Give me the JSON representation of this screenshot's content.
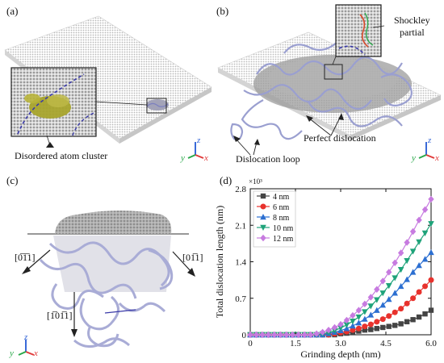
{
  "panels": {
    "a": {
      "letter": "(a)",
      "annotation": "Disordered atom cluster"
    },
    "b": {
      "letter": "(b)",
      "annotation_partial_line1": "Shockley",
      "annotation_partial_line2": "partial",
      "annotation_perfect": "Perfect dislocation",
      "annotation_loop": "Dislocation loop"
    },
    "c": {
      "letter": "(c)",
      "dir_left": "[0̅1̅1]",
      "dir_right": "[01̅1]",
      "dir_down": "[1̅01̅1]"
    },
    "d": {
      "letter": "(d)"
    },
    "axes_triad": {
      "x": "x",
      "y": "y",
      "z": "z"
    },
    "colors": {
      "atoms": "#b9b9b9",
      "cluster": "#b8b43a",
      "dislocation": "#9a9fd0",
      "burgers": "#3a3aa8",
      "triad_x": "#e03a3a",
      "triad_y": "#2aa84a",
      "triad_z": "#3a6ad8"
    }
  },
  "chart_data": {
    "type": "line",
    "title": "",
    "xlabel": "Grinding depth (nm)",
    "ylabel": "Total dislocation length (nm)",
    "y_multiplier": "×10³",
    "xlim": [
      0,
      6.0
    ],
    "ylim": [
      0,
      2.8
    ],
    "xticks": [
      "0",
      "1.5",
      "3.0",
      "4.5",
      "6.0"
    ],
    "yticks": [
      "0",
      "0.7",
      "1.4",
      "2.1",
      "2.8"
    ],
    "legend_position": "top-left",
    "grid": false,
    "x": [
      0,
      0.2,
      0.4,
      0.6,
      0.8,
      1.0,
      1.2,
      1.4,
      1.6,
      1.8,
      2.0,
      2.2,
      2.4,
      2.6,
      2.8,
      3.0,
      3.2,
      3.4,
      3.6,
      3.8,
      4.0,
      4.2,
      4.4,
      4.6,
      4.8,
      5.0,
      5.2,
      5.4,
      5.6,
      5.8,
      6.0
    ],
    "series": [
      {
        "name": "4 nm",
        "color": "#444444",
        "marker": "square",
        "values": [
          0,
          0,
          0,
          0,
          0,
          0,
          0,
          0,
          0,
          0,
          0,
          0,
          0,
          0,
          0,
          0.02,
          0.03,
          0.05,
          0.07,
          0.09,
          0.1,
          0.12,
          0.14,
          0.16,
          0.18,
          0.21,
          0.25,
          0.29,
          0.34,
          0.4,
          0.47
        ]
      },
      {
        "name": "6 nm",
        "color": "#e8322d",
        "marker": "circle",
        "values": [
          0,
          0,
          0,
          0,
          0,
          0,
          0,
          0,
          0,
          0,
          0,
          0,
          0,
          0,
          0.02,
          0.04,
          0.06,
          0.09,
          0.12,
          0.16,
          0.2,
          0.25,
          0.3,
          0.36,
          0.43,
          0.5,
          0.6,
          0.7,
          0.82,
          0.93,
          1.05
        ]
      },
      {
        "name": "8 nm",
        "color": "#2c6fd1",
        "marker": "triangle-up",
        "values": [
          0,
          0,
          0,
          0,
          0,
          0,
          0,
          0,
          0,
          0,
          0,
          0,
          0,
          0.02,
          0.05,
          0.08,
          0.12,
          0.17,
          0.23,
          0.3,
          0.38,
          0.47,
          0.57,
          0.68,
          0.8,
          0.93,
          1.06,
          1.2,
          1.33,
          1.45,
          1.58
        ]
      },
      {
        "name": "10 nm",
        "color": "#1fa37a",
        "marker": "triangle-down",
        "values": [
          0,
          0,
          0,
          0,
          0,
          0,
          0,
          0,
          0,
          0,
          0,
          0,
          0.02,
          0.04,
          0.08,
          0.13,
          0.19,
          0.26,
          0.34,
          0.44,
          0.55,
          0.67,
          0.8,
          0.94,
          1.09,
          1.25,
          1.42,
          1.6,
          1.78,
          1.95,
          2.13
        ]
      },
      {
        "name": "12 nm",
        "color": "#c77be0",
        "marker": "diamond",
        "values": [
          0,
          0,
          0,
          0,
          0,
          0,
          0,
          0,
          0,
          0,
          0,
          0.02,
          0.05,
          0.09,
          0.14,
          0.2,
          0.28,
          0.37,
          0.47,
          0.59,
          0.72,
          0.87,
          1.03,
          1.2,
          1.38,
          1.57,
          1.77,
          1.98,
          2.2,
          2.4,
          2.6
        ]
      }
    ]
  }
}
